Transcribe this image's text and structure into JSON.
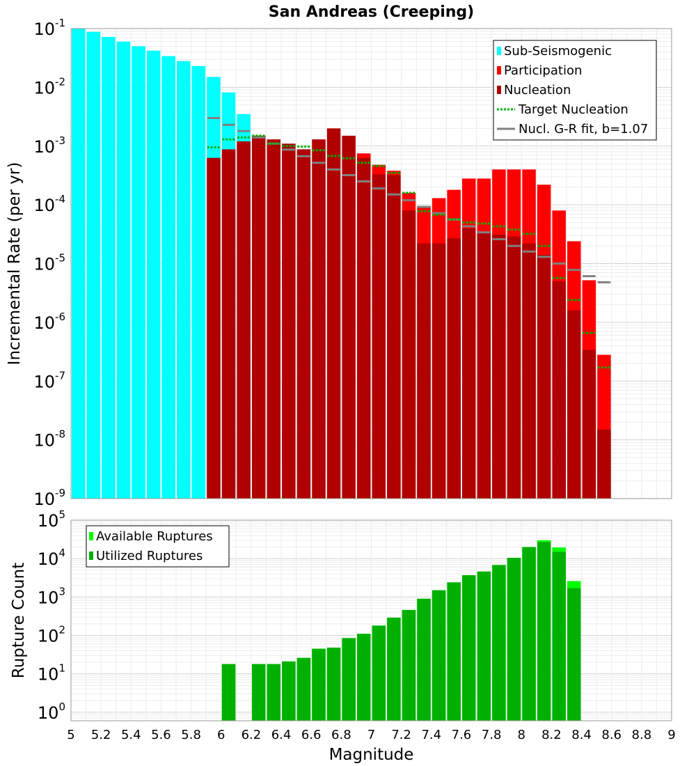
{
  "chart_data": [
    {
      "type": "bar",
      "title": "San Andreas (Creeping)",
      "xlabel": "",
      "ylabel": "Incremental Rate (per yr)",
      "yscale": "log",
      "ylim": [
        1e-09,
        0.1
      ],
      "xlim": [
        5,
        9
      ],
      "y_ticks": [
        {
          "base": "10",
          "exp": "-9"
        },
        {
          "base": "10",
          "exp": "-8"
        },
        {
          "base": "10",
          "exp": "-7"
        },
        {
          "base": "10",
          "exp": "-6"
        },
        {
          "base": "10",
          "exp": "-5"
        },
        {
          "base": "10",
          "exp": "-4"
        },
        {
          "base": "10",
          "exp": "-3"
        },
        {
          "base": "10",
          "exp": "-2"
        },
        {
          "base": "10",
          "exp": "-1"
        }
      ],
      "grid": true,
      "legend_position": "top-right",
      "legend": [
        {
          "label": "Sub-Seismogenic",
          "color": "#00ffff",
          "style": "bar"
        },
        {
          "label": "Participation",
          "color": "#ff0000",
          "style": "bar"
        },
        {
          "label": "Nucleation",
          "color": "#b00000",
          "style": "bar"
        },
        {
          "label": "Target Nucleation",
          "color": "#00b000",
          "style": "dotted"
        },
        {
          "label": "Nucl. G-R fit, b=1.07",
          "color": "#808080",
          "style": "line"
        }
      ],
      "series": [
        {
          "name": "Sub-Seismogenic",
          "color": "#00ffff",
          "x": [
            5.05,
            5.15,
            5.25,
            5.35,
            5.45,
            5.55,
            5.65,
            5.75,
            5.85,
            5.95,
            6.05,
            6.15
          ],
          "values": [
            0.1,
            0.088,
            0.072,
            0.06,
            0.05,
            0.042,
            0.034,
            0.028,
            0.023,
            0.015,
            0.0082,
            0.0035
          ]
        },
        {
          "name": "Participation",
          "color": "#ff0000",
          "x": [
            6.95,
            7.05,
            7.15,
            7.25,
            7.35,
            7.45,
            7.55,
            7.65,
            7.75,
            7.85,
            7.95,
            8.05,
            8.15,
            8.25,
            8.35,
            8.45,
            8.55
          ],
          "values": [
            0.00075,
            0.00048,
            0.00038,
            0.00016,
            9.5e-05,
            0.00013,
            0.00018,
            0.00028,
            0.00028,
            0.0004,
            0.0004,
            0.0004,
            0.00022,
            8e-05,
            2.4e-05,
            5.2e-06,
            2.8e-07
          ]
        },
        {
          "name": "Nucleation",
          "color": "#b00000",
          "x": [
            5.95,
            6.05,
            6.15,
            6.25,
            6.35,
            6.45,
            6.55,
            6.65,
            6.75,
            6.85,
            6.95,
            7.05,
            7.15,
            7.25,
            7.35,
            7.45,
            7.55,
            7.65,
            7.75,
            7.85,
            7.95,
            8.05,
            8.15,
            8.25,
            8.35,
            8.45,
            8.55
          ],
          "values": [
            0.00063,
            0.00088,
            0.0012,
            0.0015,
            0.0013,
            0.0011,
            0.00088,
            0.0013,
            0.002,
            0.0015,
            0.00063,
            0.00033,
            0.00032,
            8e-05,
            2.2e-05,
            2.2e-05,
            2.7e-05,
            4e-05,
            3.5e-05,
            3.1e-05,
            2.9e-05,
            2.2e-05,
            1.4e-05,
            5e-06,
            1.6e-06,
            3.4e-07,
            1.5e-08
          ]
        },
        {
          "name": "Target Nucleation",
          "color": "#00b000",
          "x": [
            5.95,
            6.05,
            6.15,
            6.25,
            6.35,
            6.45,
            6.55,
            6.65,
            6.75,
            6.85,
            6.95,
            7.05,
            7.15,
            7.25,
            7.35,
            7.45,
            7.55,
            7.65,
            7.75,
            7.85,
            7.95,
            8.05,
            8.15,
            8.25,
            8.35,
            8.45,
            8.55
          ],
          "values": [
            0.00095,
            0.0013,
            0.0014,
            0.0015,
            0.0011,
            0.001,
            0.00098,
            0.00085,
            0.00068,
            0.00062,
            0.00052,
            0.00046,
            0.00035,
            0.00016,
            7.8e-05,
            6.8e-05,
            5.7e-05,
            5e-05,
            4.8e-05,
            4.3e-05,
            3.8e-05,
            3.2e-05,
            2e-05,
            5.7e-06,
            2.4e-06,
            6.6e-07,
            1.7e-07
          ]
        },
        {
          "name": "Nucl. G-R fit, b=1.07",
          "color": "#808080",
          "x": [
            5.95,
            6.05,
            6.15,
            6.25,
            6.35,
            6.45,
            6.55,
            6.65,
            6.75,
            6.85,
            6.95,
            7.05,
            7.15,
            7.25,
            7.35,
            7.45,
            7.55,
            7.65,
            7.75,
            7.85,
            7.95,
            8.05,
            8.15,
            8.25,
            8.35,
            8.45,
            8.55
          ],
          "values": [
            0.003,
            0.0023,
            0.0018,
            0.0014,
            0.0011,
            0.00087,
            0.00067,
            0.00052,
            0.0004,
            0.00032,
            0.00025,
            0.00019,
            0.00015,
            0.00012,
            9.2e-05,
            7.2e-05,
            5.6e-05,
            4.3e-05,
            3.4e-05,
            2.6e-05,
            2e-05,
            1.6e-05,
            1.3e-05,
            1e-05,
            7.8e-06,
            6.1e-06,
            4.8e-06
          ]
        }
      ]
    },
    {
      "type": "bar",
      "title": "",
      "xlabel": "Magnitude",
      "ylabel": "Rupture Count",
      "yscale": "log",
      "ylim": [
        0.6,
        100000
      ],
      "xlim": [
        5,
        9
      ],
      "x_ticks": [
        "5",
        "5.2",
        "5.4",
        "5.6",
        "5.8",
        "6",
        "6.2",
        "6.4",
        "6.6",
        "6.8",
        "7",
        "7.2",
        "7.4",
        "7.6",
        "7.8",
        "8",
        "8.2",
        "8.4",
        "8.6",
        "8.8",
        "9"
      ],
      "y_ticks": [
        {
          "base": "10",
          "exp": "0"
        },
        {
          "base": "10",
          "exp": "1"
        },
        {
          "base": "10",
          "exp": "2"
        },
        {
          "base": "10",
          "exp": "3"
        },
        {
          "base": "10",
          "exp": "4"
        },
        {
          "base": "10",
          "exp": "5"
        }
      ],
      "grid": true,
      "legend_position": "top-left",
      "legend": [
        {
          "label": "Available Ruptures",
          "color": "#00ff00",
          "style": "bar"
        },
        {
          "label": "Utilized Ruptures",
          "color": "#00b000",
          "style": "bar"
        }
      ],
      "series": [
        {
          "name": "Available Ruptures",
          "color": "#00ff00",
          "x": [
            6.05,
            6.25,
            6.35,
            6.45,
            6.55,
            6.65,
            6.75,
            6.85,
            6.95,
            7.05,
            7.15,
            7.25,
            7.35,
            7.45,
            7.55,
            7.65,
            7.75,
            7.85,
            7.95,
            8.05,
            8.15,
            8.25,
            8.35
          ],
          "values": [
            18,
            18,
            18,
            21,
            26,
            45,
            48,
            85,
            110,
            180,
            290,
            460,
            900,
            1500,
            2400,
            3700,
            4600,
            6800,
            10500,
            20000,
            30000,
            19500,
            2600
          ]
        },
        {
          "name": "Utilized Ruptures",
          "color": "#00b000",
          "x": [
            6.05,
            6.25,
            6.35,
            6.45,
            6.55,
            6.65,
            6.75,
            6.85,
            6.95,
            7.05,
            7.15,
            7.25,
            7.35,
            7.45,
            7.55,
            7.65,
            7.75,
            7.85,
            7.95,
            8.05,
            8.15,
            8.25,
            8.35
          ],
          "values": [
            18,
            18,
            18,
            21,
            26,
            45,
            48,
            85,
            110,
            180,
            290,
            460,
            900,
            1500,
            2400,
            3700,
            4600,
            6800,
            10500,
            20000,
            27000,
            15000,
            1700
          ]
        }
      ]
    }
  ]
}
